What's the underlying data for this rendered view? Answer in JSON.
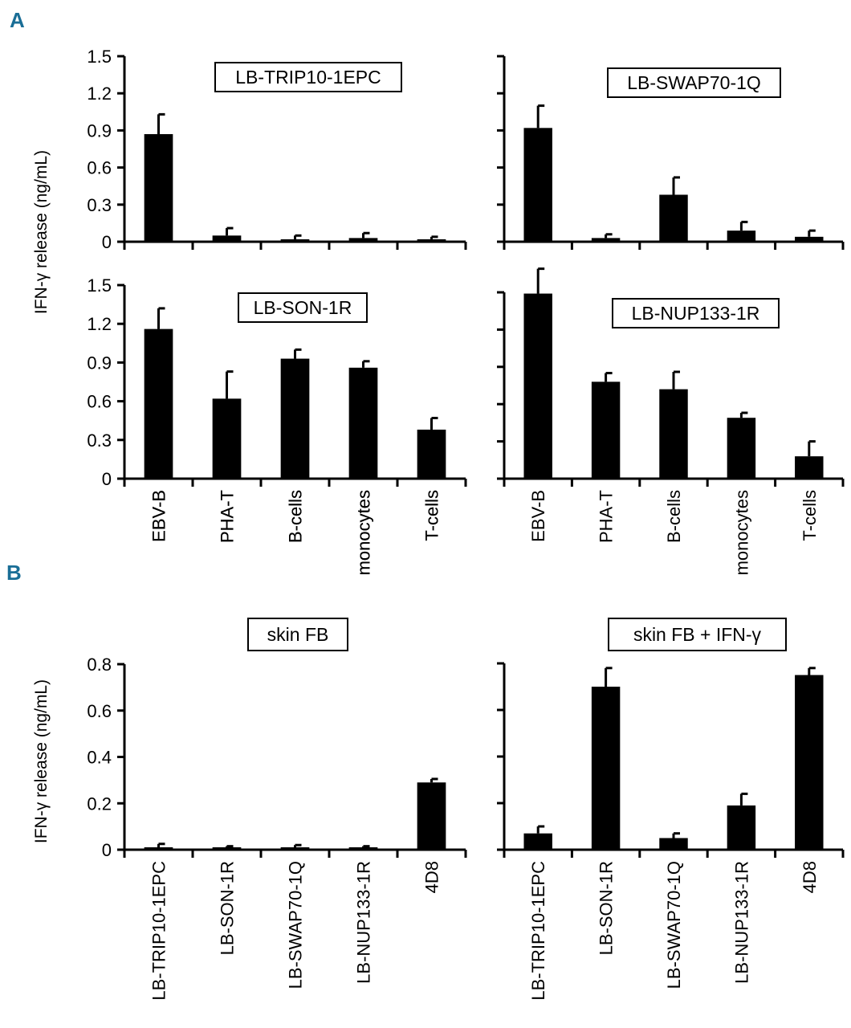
{
  "panels": [
    {
      "id": "A",
      "label": "A"
    },
    {
      "id": "B",
      "label": "B"
    }
  ],
  "ylabel": "IFN-γ release (ng/mL)",
  "chart_data": [
    {
      "id": "A-trip10",
      "type": "bar",
      "panel": "A",
      "title": "LB-TRIP10-1EPC",
      "categories": [
        "EBV-B",
        "PHA-T",
        "B-cells",
        "monocytes",
        "T-cells"
      ],
      "values": [
        0.87,
        0.05,
        0.02,
        0.03,
        0.02
      ],
      "errors": [
        0.16,
        0.06,
        0.03,
        0.04,
        0.02
      ],
      "ylim": [
        0,
        1.5
      ],
      "yticks": [
        0,
        0.3,
        0.6,
        0.9,
        1.2,
        1.5
      ],
      "show_ytick_labels": true,
      "ylabel": "IFN-γ release (ng/mL)"
    },
    {
      "id": "A-swap70",
      "type": "bar",
      "panel": "A",
      "title": "LB-SWAP70-1Q",
      "categories": [
        "EBV-B",
        "PHA-T",
        "B-cells",
        "monocytes",
        "T-cells"
      ],
      "values": [
        0.92,
        0.03,
        0.38,
        0.09,
        0.04
      ],
      "errors": [
        0.18,
        0.03,
        0.14,
        0.07,
        0.05
      ],
      "ylim": [
        0,
        1.5
      ],
      "yticks": [
        0,
        0.3,
        0.6,
        0.9,
        1.2,
        1.5
      ],
      "show_ytick_labels": false
    },
    {
      "id": "A-son",
      "type": "bar",
      "panel": "A",
      "title": "LB-SON-1R",
      "categories": [
        "EBV-B",
        "PHA-T",
        "B-cells",
        "monocytes",
        "T-cells"
      ],
      "values": [
        1.16,
        0.62,
        0.93,
        0.86,
        0.38
      ],
      "errors": [
        0.16,
        0.21,
        0.07,
        0.05,
        0.09
      ],
      "ylim": [
        0,
        1.5
      ],
      "yticks": [
        0,
        0.3,
        0.6,
        0.9,
        1.2,
        1.5
      ],
      "show_ytick_labels": true
    },
    {
      "id": "A-nup133",
      "type": "bar",
      "panel": "A",
      "title": "LB-NUP133-1R",
      "categories": [
        "EBV-B",
        "PHA-T",
        "B-cells",
        "monocytes",
        "T-cells"
      ],
      "values": [
        1.49,
        0.78,
        0.72,
        0.49,
        0.18
      ],
      "errors": [
        0.2,
        0.07,
        0.14,
        0.04,
        0.12
      ],
      "ylim": [
        0,
        1.5
      ],
      "yticks": [
        0,
        0.3,
        0.6,
        0.9,
        1.2,
        1.5
      ],
      "show_ytick_labels": false
    },
    {
      "id": "B-skin",
      "type": "bar",
      "panel": "B",
      "title": "skin FB",
      "categories": [
        "LB-TRIP10-1EPC",
        "LB-SON-1R",
        "LB-SWAP70-1Q",
        "LB-NUP133-1R",
        "4D8"
      ],
      "values": [
        0.0,
        0.0,
        0.0,
        0.0,
        0.29
      ],
      "errors": [
        0.025,
        0.015,
        0.02,
        0.015,
        0.015
      ],
      "ylim": [
        0,
        0.8
      ],
      "yticks": [
        0,
        0.2,
        0.4,
        0.6,
        0.8
      ],
      "show_ytick_labels": true,
      "ylabel": "IFN-γ release (ng/mL)"
    },
    {
      "id": "B-skin-ifng",
      "type": "bar",
      "panel": "B",
      "title": "skin FB + IFN-γ",
      "categories": [
        "LB-TRIP10-1EPC",
        "LB-SON-1R",
        "LB-SWAP70-1Q",
        "LB-NUP133-1R",
        "4D8"
      ],
      "values": [
        0.07,
        0.7,
        0.05,
        0.19,
        0.75
      ],
      "errors": [
        0.03,
        0.08,
        0.02,
        0.05,
        0.03
      ],
      "ylim": [
        0,
        0.8
      ],
      "yticks": [
        0,
        0.2,
        0.4,
        0.6,
        0.8
      ],
      "show_ytick_labels": false
    }
  ]
}
